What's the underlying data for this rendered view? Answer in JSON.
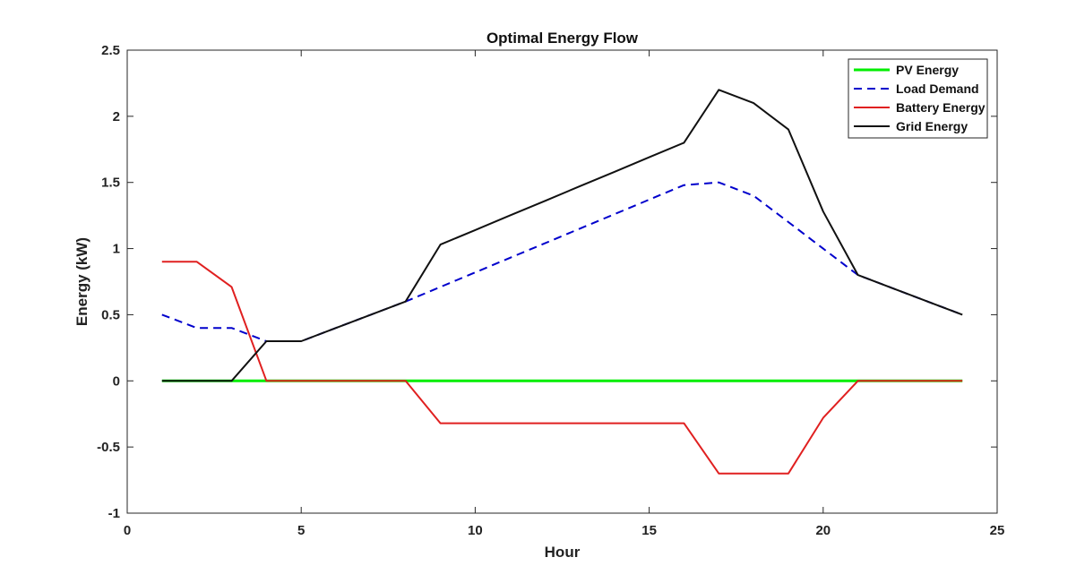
{
  "chart_data": {
    "type": "line",
    "title": "Optimal Energy Flow",
    "xlabel": "Hour",
    "ylabel": "Energy (kW)",
    "xlim": [
      0,
      25
    ],
    "ylim": [
      -1,
      2.5
    ],
    "xticks": [
      0,
      5,
      10,
      15,
      20,
      25
    ],
    "yticks": [
      -1,
      -0.5,
      0,
      0.5,
      1,
      1.5,
      2,
      2.5
    ],
    "xtick_labels": [
      "0",
      "5",
      "10",
      "15",
      "20",
      "25"
    ],
    "ytick_labels": [
      "-1",
      "-0.5",
      "0",
      "0.5",
      "1",
      "1.5",
      "2",
      "2.5"
    ],
    "grid": false,
    "legend_position": "top-right",
    "x": [
      1,
      2,
      3,
      4,
      5,
      6,
      7,
      8,
      9,
      10,
      11,
      12,
      13,
      14,
      15,
      16,
      17,
      18,
      19,
      20,
      21,
      22,
      23,
      24
    ],
    "series": [
      {
        "name": "PV Energy",
        "color": "#00ee00",
        "style": "solid",
        "values": [
          0,
          0,
          0,
          0,
          0,
          0,
          0,
          0,
          0,
          0,
          0,
          0,
          0,
          0,
          0,
          0,
          0,
          0,
          0,
          0,
          0,
          0,
          0,
          0
        ]
      },
      {
        "name": "Load Demand",
        "color": "#0000cc",
        "style": "dashed",
        "values": [
          0.5,
          0.4,
          0.4,
          0.3,
          0.3,
          0.4,
          0.5,
          0.6,
          0.71,
          0.82,
          0.93,
          1.04,
          1.15,
          1.26,
          1.37,
          1.48,
          1.5,
          1.4,
          1.2,
          1.0,
          0.8,
          0.7,
          0.6,
          0.5
        ]
      },
      {
        "name": "Battery Energy",
        "color": "#e02020",
        "style": "solid",
        "values": [
          0.9,
          0.9,
          0.71,
          0,
          0,
          0,
          0,
          0,
          -0.32,
          -0.32,
          -0.32,
          -0.32,
          -0.32,
          -0.32,
          -0.32,
          -0.32,
          -0.7,
          -0.7,
          -0.7,
          -0.28,
          0,
          0,
          0,
          0
        ]
      },
      {
        "name": "Grid Energy",
        "color": "#111111",
        "style": "solid",
        "values": [
          0,
          0,
          0,
          0.3,
          0.3,
          0.4,
          0.5,
          0.6,
          1.03,
          1.14,
          1.25,
          1.36,
          1.47,
          1.58,
          1.69,
          1.8,
          2.2,
          2.1,
          1.9,
          1.28,
          0.8,
          0.7,
          0.6,
          0.5
        ]
      }
    ]
  }
}
